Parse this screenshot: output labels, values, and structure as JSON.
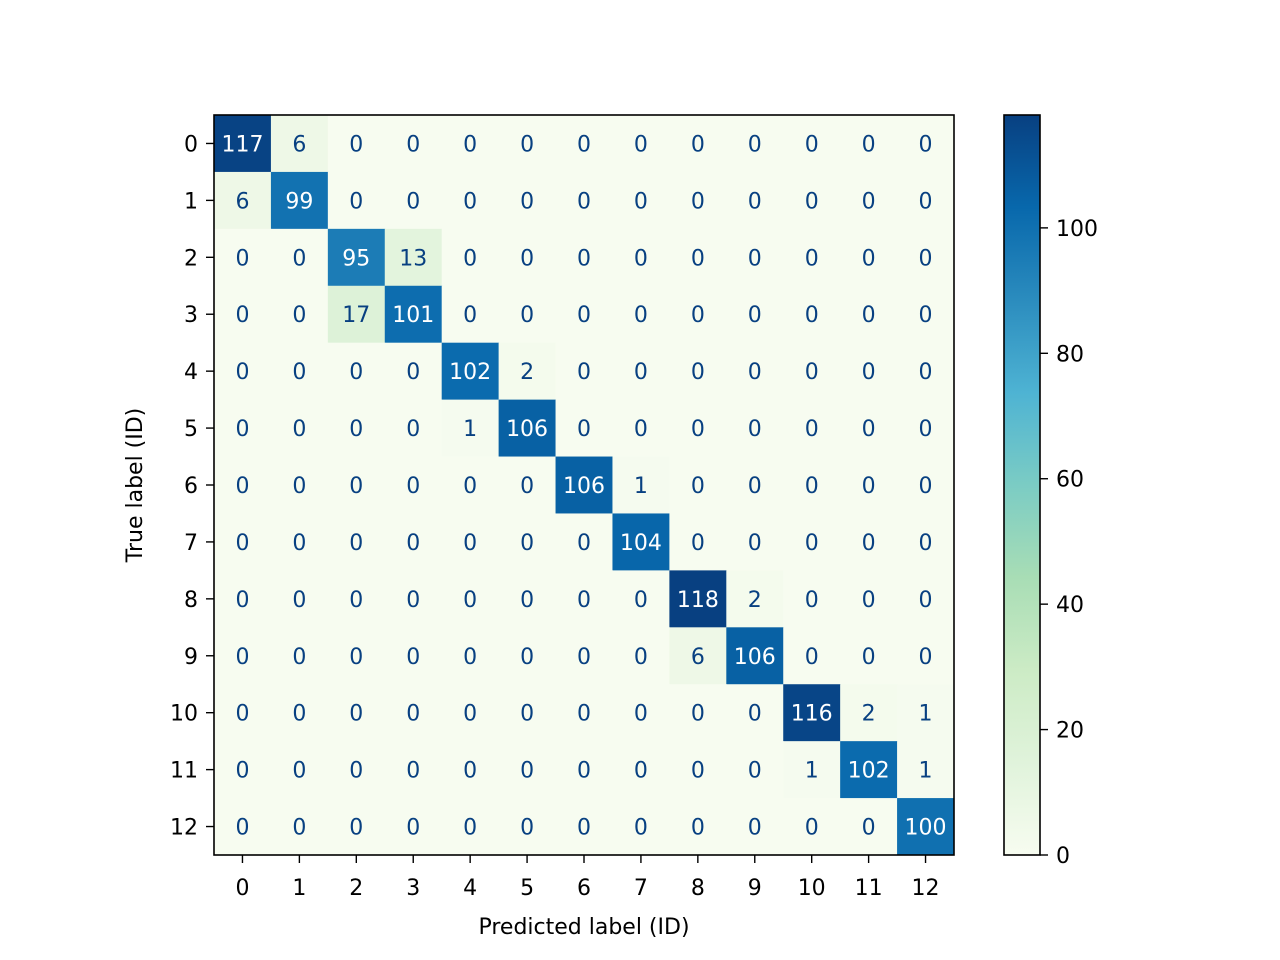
{
  "chart_data": {
    "type": "heatmap",
    "title": "",
    "xlabel": "Predicted label (ID)",
    "ylabel": "True label (ID)",
    "x_categories": [
      "0",
      "1",
      "2",
      "3",
      "4",
      "5",
      "6",
      "7",
      "8",
      "9",
      "10",
      "11",
      "12"
    ],
    "y_categories": [
      "0",
      "1",
      "2",
      "3",
      "4",
      "5",
      "6",
      "7",
      "8",
      "9",
      "10",
      "11",
      "12"
    ],
    "matrix": [
      [
        117,
        6,
        0,
        0,
        0,
        0,
        0,
        0,
        0,
        0,
        0,
        0,
        0
      ],
      [
        6,
        99,
        0,
        0,
        0,
        0,
        0,
        0,
        0,
        0,
        0,
        0,
        0
      ],
      [
        0,
        0,
        95,
        13,
        0,
        0,
        0,
        0,
        0,
        0,
        0,
        0,
        0
      ],
      [
        0,
        0,
        17,
        101,
        0,
        0,
        0,
        0,
        0,
        0,
        0,
        0,
        0
      ],
      [
        0,
        0,
        0,
        0,
        102,
        2,
        0,
        0,
        0,
        0,
        0,
        0,
        0
      ],
      [
        0,
        0,
        0,
        0,
        1,
        106,
        0,
        0,
        0,
        0,
        0,
        0,
        0
      ],
      [
        0,
        0,
        0,
        0,
        0,
        0,
        106,
        1,
        0,
        0,
        0,
        0,
        0
      ],
      [
        0,
        0,
        0,
        0,
        0,
        0,
        0,
        104,
        0,
        0,
        0,
        0,
        0
      ],
      [
        0,
        0,
        0,
        0,
        0,
        0,
        0,
        0,
        118,
        2,
        0,
        0,
        0
      ],
      [
        0,
        0,
        0,
        0,
        0,
        0,
        0,
        0,
        6,
        106,
        0,
        0,
        0
      ],
      [
        0,
        0,
        0,
        0,
        0,
        0,
        0,
        0,
        0,
        0,
        116,
        2,
        1
      ],
      [
        0,
        0,
        0,
        0,
        0,
        0,
        0,
        0,
        0,
        0,
        1,
        102,
        1
      ],
      [
        0,
        0,
        0,
        0,
        0,
        0,
        0,
        0,
        0,
        0,
        0,
        0,
        100
      ]
    ],
    "colormap": "GnBu",
    "colorbar": {
      "range": [
        0,
        118
      ],
      "ticks": [
        0,
        20,
        40,
        60,
        80,
        100
      ],
      "colors": [
        "#f7fcf0",
        "#e0f3db",
        "#ccebc5",
        "#a8ddb5",
        "#7bccc4",
        "#4eb3d3",
        "#2b8cbe",
        "#0868ac",
        "#084081"
      ]
    },
    "text_color_dark": "#084081",
    "text_color_light": "#ffffff",
    "grid": false
  }
}
